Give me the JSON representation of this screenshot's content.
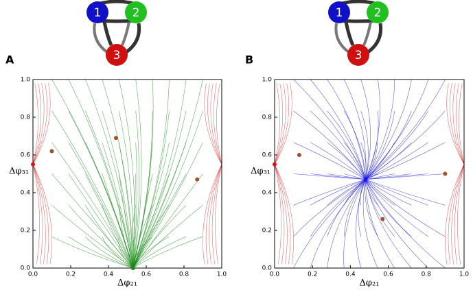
{
  "chart_data": [
    {
      "type": "phase-portrait",
      "panel": "A",
      "node_labels": [
        "1",
        "2",
        "3"
      ],
      "xlabel": "Δφ₂₁",
      "ylabel": "Δφ₃₁",
      "xlim": [
        0,
        1
      ],
      "ylim": [
        0,
        1
      ],
      "xticks": [
        {
          "value": 0,
          "label": "0.0"
        },
        0.2,
        0.4,
        0.6,
        0.8,
        {
          "value": 1,
          "label": "1.0"
        }
      ],
      "yticks": [
        {
          "value": 0,
          "label": "0.0"
        },
        0.2,
        0.4,
        0.6,
        0.8,
        {
          "value": 1,
          "label": "1.0"
        }
      ],
      "stream_color": "#1a8a1a",
      "edge_stream_color": "#e03030",
      "points": {
        "x": [
          0,
          0.1,
          0.44,
          0.87,
          0.53
        ],
        "y": [
          0.55,
          0.62,
          0.69,
          0.47,
          0
        ],
        "colors": [
          "#dd1111",
          "#a0522d",
          "#a0522d",
          "#a0522d",
          "#1a8a1a"
        ]
      }
    },
    {
      "type": "phase-portrait",
      "panel": "B",
      "node_labels": [
        "1",
        "2",
        "3"
      ],
      "xlabel": "Δφ₂₁",
      "ylabel": "Δφ₃₁",
      "xlim": [
        0,
        1
      ],
      "ylim": [
        0,
        1
      ],
      "xticks": [
        {
          "value": 0,
          "label": "0.0"
        },
        0.2,
        0.4,
        0.6,
        0.8,
        {
          "value": 1,
          "label": "1.0"
        }
      ],
      "yticks": [
        {
          "value": 0,
          "label": "0.0"
        },
        0.2,
        0.4,
        0.6,
        0.8,
        {
          "value": 1,
          "label": "1.0"
        }
      ],
      "stream_color": "#1a1ae0",
      "edge_stream_color": "#e03030",
      "points": {
        "x": [
          0,
          0.13,
          0.48,
          0.57,
          0.9
        ],
        "y": [
          0.55,
          0.6,
          0.47,
          0.26,
          0.5
        ],
        "colors": [
          "#dd1111",
          "#a0522d",
          "#1a1ae0",
          "#a0522d",
          "#a0522d"
        ]
      }
    }
  ]
}
